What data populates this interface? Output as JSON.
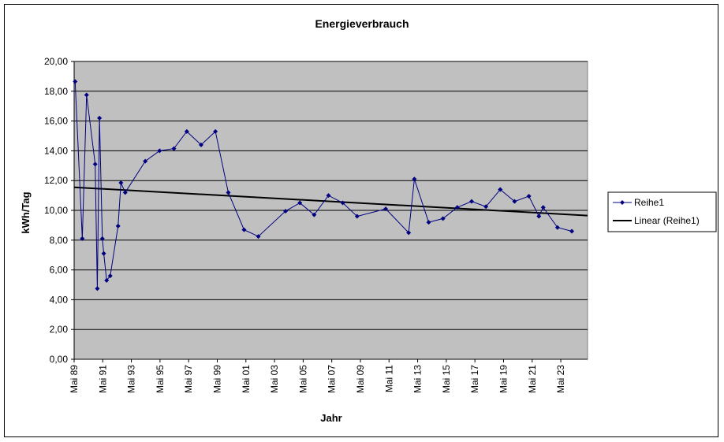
{
  "chart_data": {
    "type": "line",
    "title": "Energieverbrauch",
    "xlabel": "Jahr",
    "ylabel": "kWh/Tag",
    "ylim": [
      0,
      20
    ],
    "yticks": [
      "0,00",
      "2,00",
      "4,00",
      "6,00",
      "8,00",
      "10,00",
      "12,00",
      "14,00",
      "16,00",
      "18,00",
      "20,00"
    ],
    "xlim": [
      1989.33,
      2025.2
    ],
    "xticks": [
      {
        "x": 1989.33,
        "label": "Mai 89"
      },
      {
        "x": 1991.33,
        "label": "Mai 91"
      },
      {
        "x": 1993.33,
        "label": "Mai 93"
      },
      {
        "x": 1995.33,
        "label": "Mai 95"
      },
      {
        "x": 1997.33,
        "label": "Mai 97"
      },
      {
        "x": 1999.33,
        "label": "Mai 99"
      },
      {
        "x": 2001.33,
        "label": "Mai 01"
      },
      {
        "x": 2003.33,
        "label": "Mai 03"
      },
      {
        "x": 2005.33,
        "label": "Mai 05"
      },
      {
        "x": 2007.33,
        "label": "Mai 07"
      },
      {
        "x": 2009.33,
        "label": "Mai 09"
      },
      {
        "x": 2011.33,
        "label": "Mai 11"
      },
      {
        "x": 2013.33,
        "label": "Mai 13"
      },
      {
        "x": 2015.33,
        "label": "Mai 15"
      },
      {
        "x": 2017.33,
        "label": "Mai 17"
      },
      {
        "x": 2019.33,
        "label": "Mai 19"
      },
      {
        "x": 2021.33,
        "label": "Mai 21"
      },
      {
        "x": 2023.33,
        "label": "Mai 23"
      }
    ],
    "grid": true,
    "legend": "right",
    "colors": {
      "plot_bg": "#c0c0c0",
      "series": "#000080",
      "trend": "#000000",
      "grid": "#000000"
    },
    "series": [
      {
        "name": "Reihe1",
        "marker": "diamond",
        "points": [
          [
            1989.4,
            18.65
          ],
          [
            1989.9,
            8.1
          ],
          [
            1990.2,
            17.75
          ],
          [
            1990.8,
            13.1
          ],
          [
            1990.95,
            4.75
          ],
          [
            1991.1,
            16.2
          ],
          [
            1991.3,
            8.1
          ],
          [
            1991.4,
            7.1
          ],
          [
            1991.6,
            5.3
          ],
          [
            1991.85,
            5.6
          ],
          [
            1992.4,
            8.95
          ],
          [
            1992.6,
            11.85
          ],
          [
            1992.9,
            11.2
          ],
          [
            1994.3,
            13.3
          ],
          [
            1995.3,
            14.0
          ],
          [
            1996.3,
            14.15
          ],
          [
            1997.2,
            15.3
          ],
          [
            1998.2,
            14.4
          ],
          [
            1999.2,
            15.3
          ],
          [
            2000.1,
            11.2
          ],
          [
            2001.2,
            8.7
          ],
          [
            2002.2,
            8.25
          ],
          [
            2004.1,
            9.95
          ],
          [
            2005.1,
            10.5
          ],
          [
            2006.1,
            9.7
          ],
          [
            2007.1,
            11.0
          ],
          [
            2008.1,
            10.5
          ],
          [
            2009.1,
            9.6
          ],
          [
            2011.1,
            10.1
          ],
          [
            2012.7,
            8.5
          ],
          [
            2013.1,
            12.1
          ],
          [
            2014.1,
            9.2
          ],
          [
            2015.1,
            9.45
          ],
          [
            2016.1,
            10.2
          ],
          [
            2017.1,
            10.6
          ],
          [
            2018.1,
            10.25
          ],
          [
            2019.1,
            11.4
          ],
          [
            2020.1,
            10.6
          ],
          [
            2021.1,
            10.95
          ],
          [
            2021.8,
            9.6
          ],
          [
            2022.1,
            10.2
          ],
          [
            2023.1,
            8.85
          ],
          [
            2024.1,
            8.6
          ]
        ]
      },
      {
        "name": "Linear (Reihe1)",
        "kind": "trendline",
        "points": [
          [
            1989.33,
            11.55
          ],
          [
            2025.2,
            9.65
          ]
        ]
      }
    ]
  }
}
